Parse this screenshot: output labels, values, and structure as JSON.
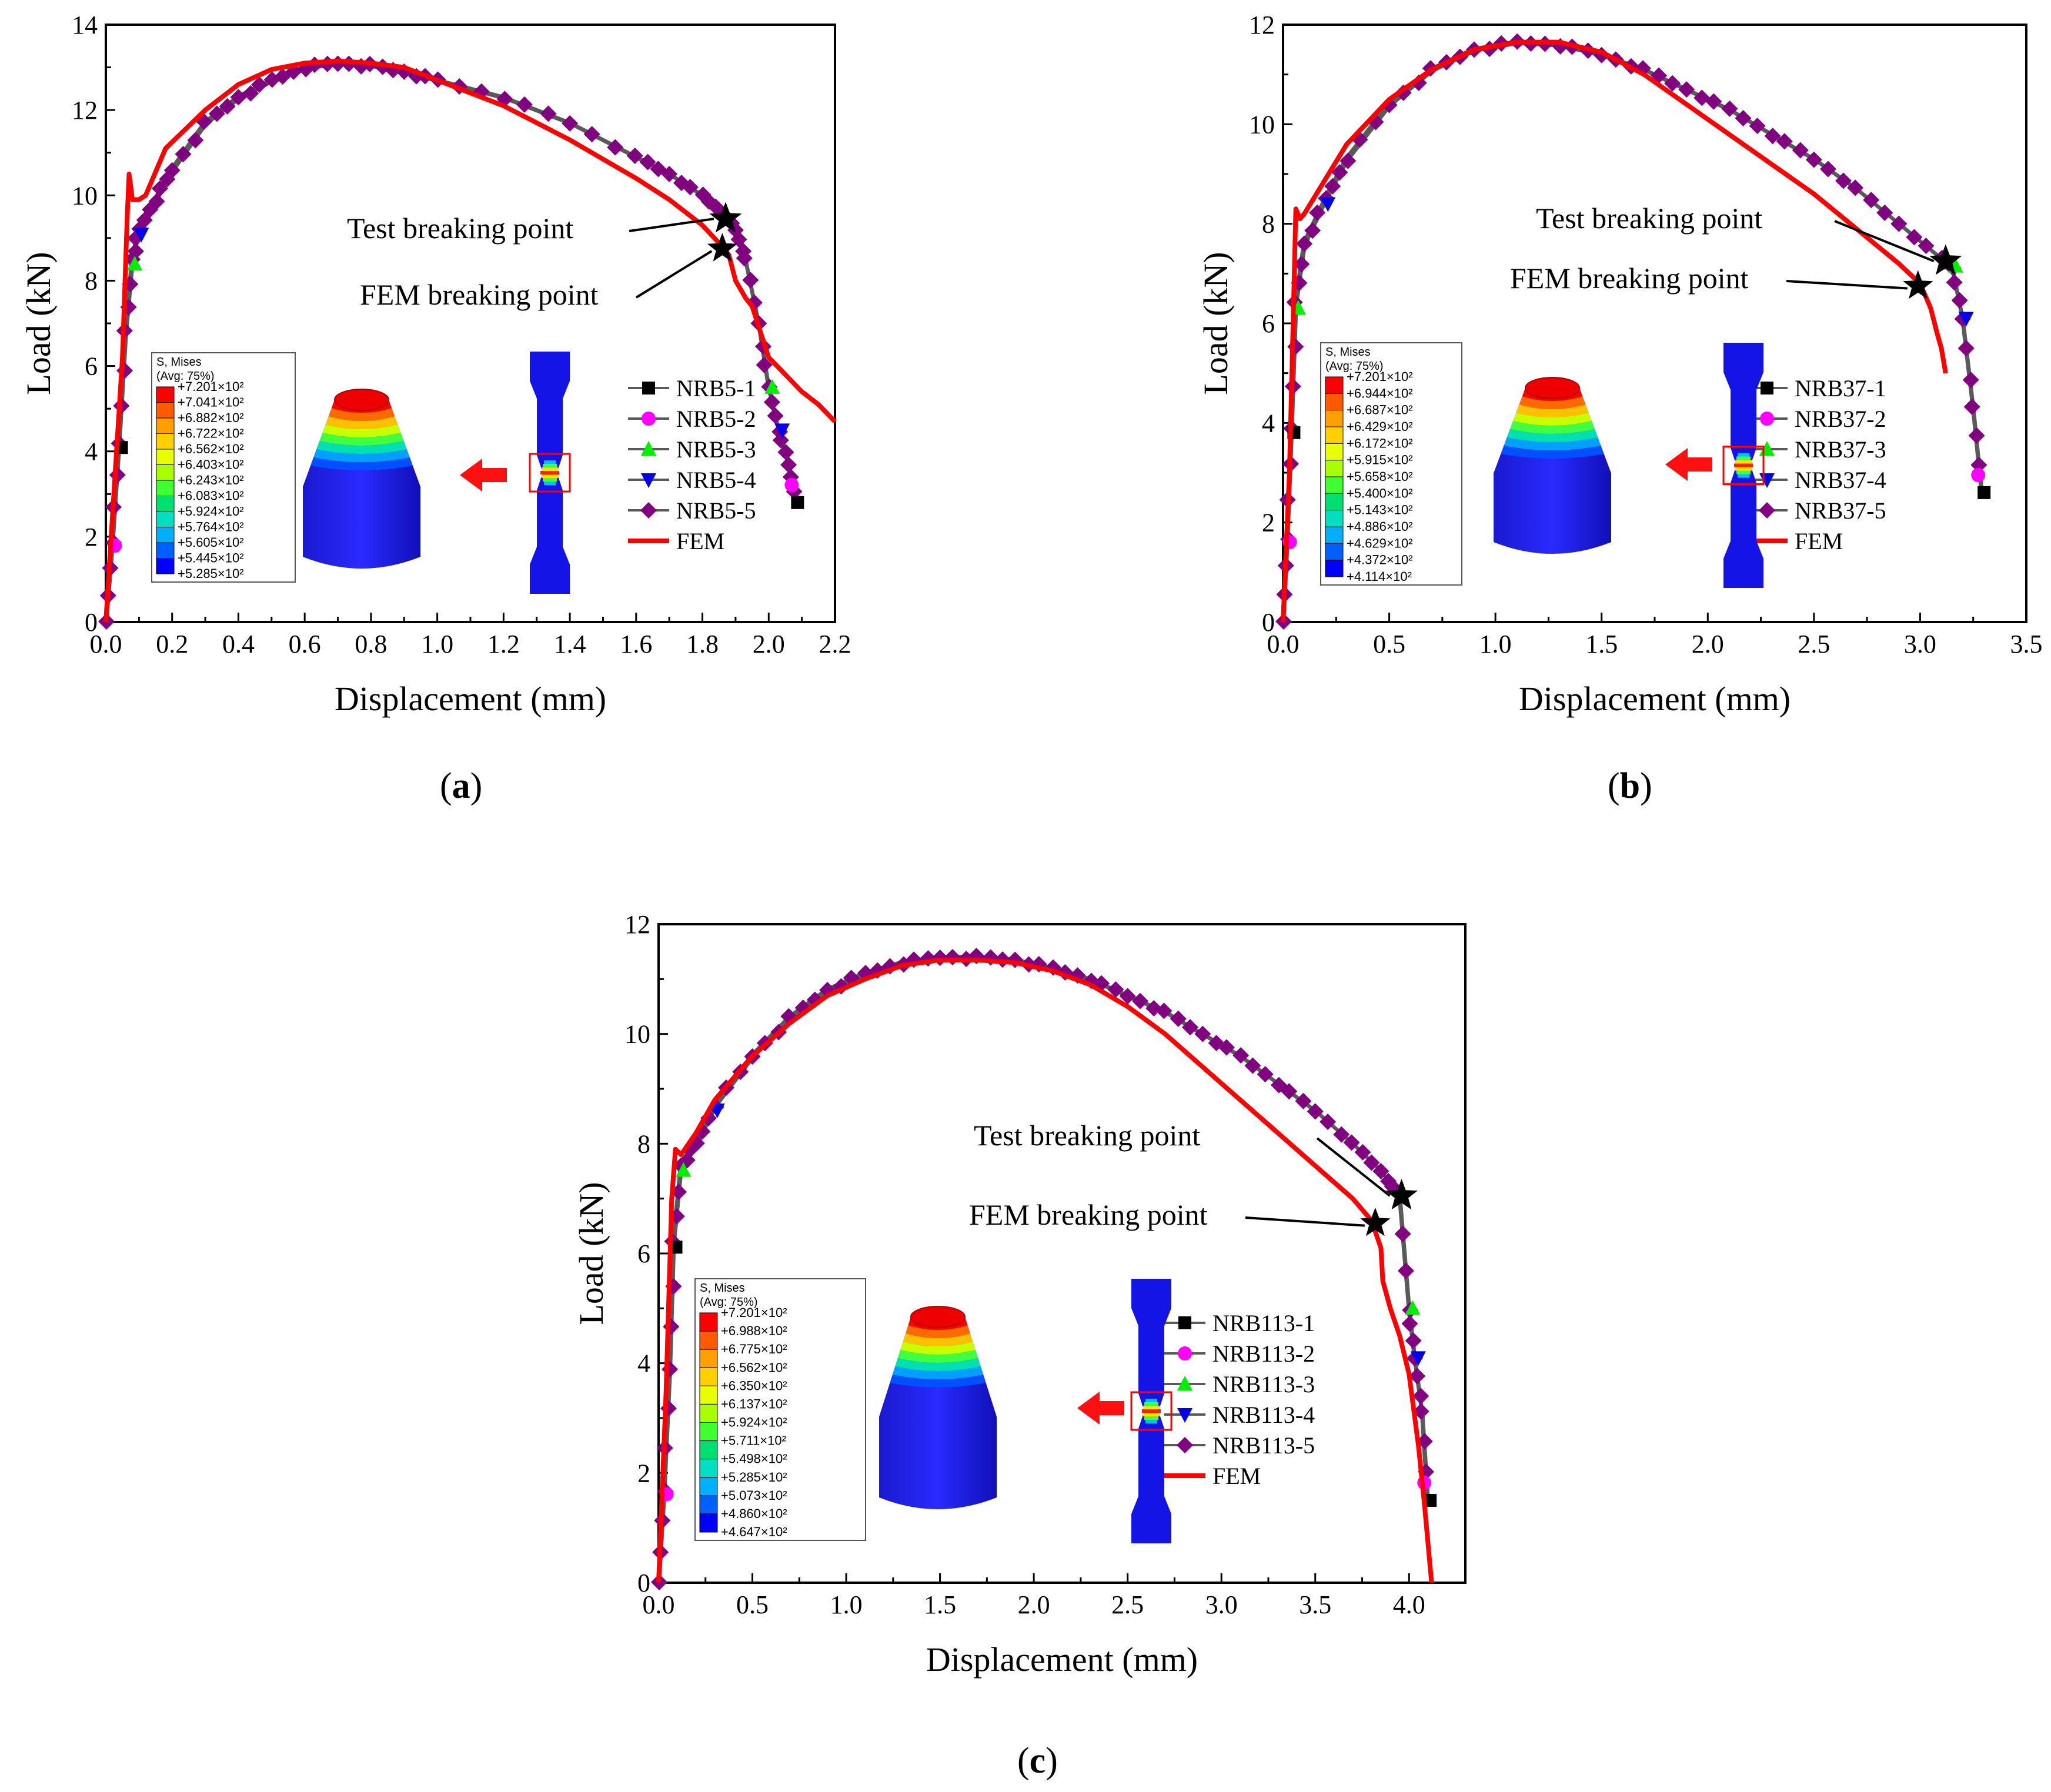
{
  "colors": {
    "nrb1": "#000000",
    "nrb2": "#ff00ff",
    "nrb3": "#00ee00",
    "nrb4": "#0000ee",
    "nrb5": "#800080",
    "fem": "#ff0000",
    "curve": "#5a5a5a"
  },
  "legend_header": [
    "S, Mises",
    "(Avg: 75%)"
  ],
  "contour_colors": [
    "#ff0000",
    "#ff5a00",
    "#ffa000",
    "#ffd000",
    "#e8ff00",
    "#a8ff00",
    "#40ff30",
    "#00e070",
    "#00e0c0",
    "#00b0ff",
    "#0060ff",
    "#0000ff"
  ],
  "panels_label": [
    "a",
    "b",
    "c"
  ],
  "chart_data": [
    {
      "type": "line",
      "panel": "a",
      "xlabel": "Displacement (mm)",
      "ylabel": "Load (kN)",
      "xlim": [
        0,
        2.2
      ],
      "ylim": [
        0,
        14
      ],
      "xticks": [
        "0.0",
        "0.2",
        "0.4",
        "0.6",
        "0.8",
        "1.0",
        "1.2",
        "1.4",
        "1.6",
        "1.8",
        "2.0",
        "2.2"
      ],
      "yticks": [
        "0",
        "2",
        "4",
        "6",
        "8",
        "10",
        "12",
        "14"
      ],
      "test_curve": [
        [
          0,
          0
        ],
        [
          0.02,
          1.9
        ],
        [
          0.04,
          4.2
        ],
        [
          0.06,
          6.8
        ],
        [
          0.08,
          8.5
        ],
        [
          0.1,
          9.2
        ],
        [
          0.15,
          9.9
        ],
        [
          0.2,
          10.6
        ],
        [
          0.3,
          11.7
        ],
        [
          0.4,
          12.3
        ],
        [
          0.5,
          12.7
        ],
        [
          0.6,
          13.0
        ],
        [
          0.7,
          13.1
        ],
        [
          0.8,
          13.05
        ],
        [
          0.9,
          12.9
        ],
        [
          1.0,
          12.7
        ],
        [
          1.2,
          12.3
        ],
        [
          1.4,
          11.7
        ],
        [
          1.6,
          10.9
        ],
        [
          1.7,
          10.5
        ],
        [
          1.8,
          10.0
        ],
        [
          1.86,
          9.6
        ],
        [
          1.9,
          9.2
        ],
        [
          1.93,
          8.5
        ],
        [
          1.97,
          7.0
        ],
        [
          2.0,
          5.5
        ],
        [
          2.03,
          4.5
        ],
        [
          2.06,
          3.7
        ],
        [
          2.08,
          2.8
        ]
      ],
      "fem_curve": [
        [
          0,
          0
        ],
        [
          0.02,
          2.5
        ],
        [
          0.05,
          6.2
        ],
        [
          0.065,
          9.6
        ],
        [
          0.07,
          10.5
        ],
        [
          0.08,
          9.9
        ],
        [
          0.1,
          9.9
        ],
        [
          0.12,
          10.0
        ],
        [
          0.18,
          11.1
        ],
        [
          0.3,
          12.0
        ],
        [
          0.4,
          12.6
        ],
        [
          0.5,
          12.95
        ],
        [
          0.6,
          13.1
        ],
        [
          0.7,
          13.15
        ],
        [
          0.8,
          13.1
        ],
        [
          0.9,
          13.0
        ],
        [
          1.0,
          12.7
        ],
        [
          1.2,
          12.1
        ],
        [
          1.4,
          11.3
        ],
        [
          1.6,
          10.4
        ],
        [
          1.7,
          9.9
        ],
        [
          1.8,
          9.3
        ],
        [
          1.86,
          8.8
        ],
        [
          1.88,
          8.6
        ],
        [
          1.9,
          8.0
        ],
        [
          1.93,
          7.6
        ],
        [
          1.95,
          7.4
        ],
        [
          2.0,
          6.2
        ],
        [
          2.05,
          5.8
        ],
        [
          2.1,
          5.4
        ],
        [
          2.15,
          5.1
        ],
        [
          2.2,
          4.7
        ]
      ],
      "test_break": [
        1.87,
        9.45
      ],
      "fem_break": [
        1.86,
        8.75
      ],
      "test_label": "Test breaking point",
      "fem_label": "FEM breaking point",
      "legend": [
        "NRB5-1",
        "NRB5-2",
        "NRB5-3",
        "NRB5-4",
        "NRB5-5",
        "FEM"
      ],
      "contour_values": [
        "+7.201×10²",
        "+7.041×10²",
        "+6.882×10²",
        "+6.722×10²",
        "+6.562×10²",
        "+6.403×10²",
        "+6.243×10²",
        "+6.083×10²",
        "+5.924×10²",
        "+5.764×10²",
        "+5.605×10²",
        "+5.445×10²",
        "+5.285×10²"
      ]
    },
    {
      "type": "line",
      "panel": "b",
      "xlabel": "Displacement (mm)",
      "ylabel": "Load (kN)",
      "xlim": [
        0,
        3.5
      ],
      "ylim": [
        0,
        12
      ],
      "xticks": [
        "0.0",
        "0.5",
        "1.0",
        "1.5",
        "2.0",
        "2.5",
        "3.0",
        "3.5"
      ],
      "yticks": [
        "0",
        "2",
        "4",
        "6",
        "8",
        "10",
        "12"
      ],
      "test_curve": [
        [
          0,
          0
        ],
        [
          0.02,
          1.7
        ],
        [
          0.04,
          3.9
        ],
        [
          0.06,
          6.4
        ],
        [
          0.1,
          7.6
        ],
        [
          0.2,
          8.5
        ],
        [
          0.3,
          9.3
        ],
        [
          0.5,
          10.4
        ],
        [
          0.7,
          11.1
        ],
        [
          0.9,
          11.5
        ],
        [
          1.1,
          11.65
        ],
        [
          1.3,
          11.6
        ],
        [
          1.5,
          11.4
        ],
        [
          1.7,
          11.1
        ],
        [
          1.9,
          10.7
        ],
        [
          2.1,
          10.3
        ],
        [
          2.3,
          9.8
        ],
        [
          2.5,
          9.3
        ],
        [
          2.7,
          8.7
        ],
        [
          2.9,
          8.0
        ],
        [
          3.1,
          7.3
        ],
        [
          3.15,
          7.15
        ],
        [
          3.2,
          6.1
        ],
        [
          3.25,
          4.3
        ],
        [
          3.29,
          2.6
        ]
      ],
      "fem_curve": [
        [
          0,
          0
        ],
        [
          0.03,
          3.0
        ],
        [
          0.05,
          6.5
        ],
        [
          0.06,
          8.3
        ],
        [
          0.08,
          8.1
        ],
        [
          0.1,
          8.2
        ],
        [
          0.2,
          8.9
        ],
        [
          0.3,
          9.6
        ],
        [
          0.5,
          10.5
        ],
        [
          0.7,
          11.1
        ],
        [
          0.9,
          11.5
        ],
        [
          1.1,
          11.65
        ],
        [
          1.3,
          11.65
        ],
        [
          1.5,
          11.45
        ],
        [
          1.7,
          11.0
        ],
        [
          1.9,
          10.4
        ],
        [
          2.1,
          9.8
        ],
        [
          2.3,
          9.2
        ],
        [
          2.5,
          8.6
        ],
        [
          2.7,
          7.9
        ],
        [
          2.9,
          7.2
        ],
        [
          3.0,
          6.8
        ],
        [
          3.02,
          6.6
        ],
        [
          3.05,
          6.3
        ],
        [
          3.08,
          5.8
        ],
        [
          3.1,
          5.5
        ],
        [
          3.12,
          5.0
        ]
      ],
      "test_break": [
        3.12,
        7.25
      ],
      "fem_break": [
        2.99,
        6.75
      ],
      "test_label": "Test breaking point",
      "fem_label": "FEM breaking point",
      "legend": [
        "NRB37-1",
        "NRB37-2",
        "NRB37-3",
        "NRB37-4",
        "NRB37-5",
        "FEM"
      ],
      "contour_values": [
        "+7.201×10²",
        "+6.944×10²",
        "+6.687×10²",
        "+6.429×10²",
        "+6.172×10²",
        "+5.915×10²",
        "+5.658×10²",
        "+5.400×10²",
        "+5.143×10²",
        "+4.886×10²",
        "+4.629×10²",
        "+4.372×10²",
        "+4.114×10²"
      ]
    },
    {
      "type": "line",
      "panel": "c",
      "xlabel": "Displacement (mm)",
      "ylabel": "Load (kN)",
      "xlim": [
        0,
        4.3
      ],
      "ylim": [
        0,
        12
      ],
      "xticks": [
        "0.0",
        "0.5",
        "1.0",
        "1.5",
        "2.0",
        "2.5",
        "3.0",
        "3.5",
        "4.0"
      ],
      "yticks": [
        "0",
        "2",
        "4",
        "6",
        "8",
        "10",
        "12"
      ],
      "test_curve": [
        [
          0,
          0
        ],
        [
          0.03,
          1.7
        ],
        [
          0.06,
          3.9
        ],
        [
          0.08,
          6.2
        ],
        [
          0.12,
          7.6
        ],
        [
          0.2,
          8.0
        ],
        [
          0.3,
          8.7
        ],
        [
          0.5,
          9.6
        ],
        [
          0.7,
          10.3
        ],
        [
          0.9,
          10.8
        ],
        [
          1.1,
          11.1
        ],
        [
          1.3,
          11.3
        ],
        [
          1.5,
          11.4
        ],
        [
          1.7,
          11.4
        ],
        [
          1.9,
          11.35
        ],
        [
          2.1,
          11.2
        ],
        [
          2.3,
          11.0
        ],
        [
          2.5,
          10.7
        ],
        [
          2.7,
          10.4
        ],
        [
          2.9,
          10.0
        ],
        [
          3.1,
          9.6
        ],
        [
          3.3,
          9.1
        ],
        [
          3.5,
          8.6
        ],
        [
          3.7,
          8.0
        ],
        [
          3.85,
          7.5
        ],
        [
          3.95,
          7.05
        ],
        [
          4.0,
          5.0
        ],
        [
          4.03,
          4.1
        ],
        [
          4.07,
          3.1
        ],
        [
          4.1,
          1.5
        ]
      ],
      "fem_curve": [
        [
          0,
          0
        ],
        [
          0.04,
          3.5
        ],
        [
          0.07,
          7.0
        ],
        [
          0.09,
          7.9
        ],
        [
          0.12,
          7.8
        ],
        [
          0.2,
          8.2
        ],
        [
          0.3,
          8.8
        ],
        [
          0.5,
          9.6
        ],
        [
          0.7,
          10.2
        ],
        [
          0.9,
          10.7
        ],
        [
          1.1,
          11.0
        ],
        [
          1.3,
          11.25
        ],
        [
          1.5,
          11.35
        ],
        [
          1.7,
          11.35
        ],
        [
          1.9,
          11.3
        ],
        [
          2.1,
          11.15
        ],
        [
          2.3,
          10.9
        ],
        [
          2.5,
          10.5
        ],
        [
          2.7,
          10.0
        ],
        [
          2.9,
          9.4
        ],
        [
          3.1,
          8.8
        ],
        [
          3.3,
          8.2
        ],
        [
          3.5,
          7.6
        ],
        [
          3.7,
          7.0
        ],
        [
          3.8,
          6.6
        ],
        [
          3.85,
          6.1
        ],
        [
          3.86,
          5.5
        ],
        [
          3.9,
          5.0
        ],
        [
          3.95,
          4.5
        ],
        [
          4.0,
          3.8
        ],
        [
          4.05,
          2.5
        ],
        [
          4.08,
          1.5
        ],
        [
          4.12,
          0
        ]
      ],
      "test_break": [
        3.96,
        7.05
      ],
      "fem_break": [
        3.82,
        6.55
      ],
      "test_label": "Test breaking point",
      "fem_label": "FEM breaking point",
      "legend": [
        "NRB113-1",
        "NRB113-2",
        "NRB113-3",
        "NRB113-4",
        "NRB113-5",
        "FEM"
      ],
      "contour_values": [
        "+7.201×10²",
        "+6.988×10²",
        "+6.775×10²",
        "+6.562×10²",
        "+6.350×10²",
        "+6.137×10²",
        "+5.924×10²",
        "+5.711×10²",
        "+5.498×10²",
        "+5.285×10²",
        "+5.073×10²",
        "+4.860×10²",
        "+4.647×10²"
      ]
    }
  ]
}
